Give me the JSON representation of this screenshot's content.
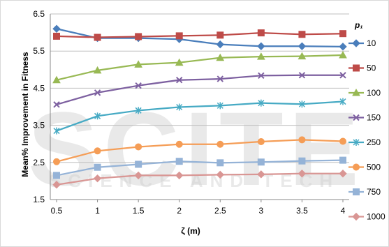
{
  "chart_data": {
    "type": "line",
    "xlabel": "ζ (m)",
    "ylabel": "Mean% Improvement in Fitness",
    "x": [
      0.5,
      1,
      1.5,
      2,
      2.5,
      3,
      3.5,
      4
    ],
    "x_tick_labels": [
      "0.5",
      "1",
      "1.5",
      "2",
      "2.5",
      "3",
      "3.5",
      "4"
    ],
    "ylim": [
      1.5,
      6.5
    ],
    "y_ticks": [
      "1.5",
      "2.5",
      "3.5",
      "4.5",
      "5.5",
      "6.5"
    ],
    "grid": "horizontal",
    "legend_position": "right",
    "legend_title": "p₁",
    "series": [
      {
        "name": "10",
        "color": "#4a7ebb",
        "marker": "diamond",
        "values": [
          6.1,
          5.85,
          5.85,
          5.82,
          5.68,
          5.63,
          5.63,
          5.62
        ]
      },
      {
        "name": "50",
        "color": "#be4b48",
        "marker": "square",
        "values": [
          5.9,
          5.87,
          5.89,
          5.91,
          5.93,
          5.99,
          5.95,
          5.97
        ]
      },
      {
        "name": "100",
        "color": "#98b954",
        "marker": "triangle",
        "values": [
          4.72,
          4.98,
          5.14,
          5.19,
          5.32,
          5.35,
          5.36,
          5.39
        ]
      },
      {
        "name": "150",
        "color": "#7d60a0",
        "marker": "x",
        "values": [
          4.06,
          4.38,
          4.57,
          4.72,
          4.75,
          4.84,
          4.85,
          4.85
        ]
      },
      {
        "name": "250",
        "color": "#46aac4",
        "marker": "star",
        "values": [
          3.35,
          3.75,
          3.9,
          3.99,
          4.03,
          4.1,
          4.07,
          4.14
        ]
      },
      {
        "name": "500",
        "color": "#f59d56",
        "marker": "circle",
        "values": [
          2.52,
          2.81,
          2.92,
          2.99,
          2.99,
          3.06,
          3.11,
          3.07
        ]
      },
      {
        "name": "750",
        "color": "#95b3d7",
        "marker": "square",
        "values": [
          2.15,
          2.37,
          2.45,
          2.53,
          2.49,
          2.51,
          2.54,
          2.56
        ]
      },
      {
        "name": "1000",
        "color": "#d99694",
        "marker": "diamond",
        "values": [
          1.9,
          2.07,
          2.15,
          2.15,
          2.17,
          2.18,
          2.2,
          2.2
        ]
      }
    ]
  },
  "watermark": {
    "big": "SCITE",
    "small": "SCIENCE AND TECH"
  }
}
